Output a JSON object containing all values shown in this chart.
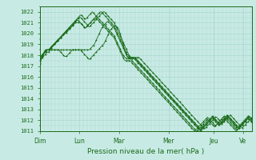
{
  "bg_color": "#c8eae4",
  "grid_color": "#a8d8d0",
  "line_color": "#1a6b1a",
  "text_color": "#1a6b1a",
  "ylim": [
    1011,
    1022.5
  ],
  "yticks": [
    1011,
    1012,
    1013,
    1014,
    1015,
    1016,
    1017,
    1018,
    1019,
    1020,
    1021,
    1022
  ],
  "xlabel": "Pression niveau de la mer( hPa )",
  "day_labels": [
    "Dim",
    "Lun",
    "Mar",
    "Mer",
    "Jeu",
    "Ve"
  ],
  "day_positions": [
    0,
    40,
    80,
    130,
    175,
    205
  ],
  "total_points": 215,
  "series": [
    [
      1017.5,
      1017.6,
      1017.7,
      1017.8,
      1017.9,
      1018.0,
      1018.1,
      1018.2,
      1018.3,
      1018.3,
      1018.4,
      1018.5,
      1018.5,
      1018.5,
      1018.5,
      1018.5,
      1018.5,
      1018.5,
      1018.5,
      1018.5,
      1018.5,
      1018.5,
      1018.5,
      1018.5,
      1018.5,
      1018.5,
      1018.5,
      1018.5,
      1018.5,
      1018.5,
      1018.5,
      1018.5,
      1018.5,
      1018.5,
      1018.5,
      1018.5,
      1018.5,
      1018.5,
      1018.5,
      1018.5,
      1018.5,
      1018.5,
      1018.4,
      1018.3,
      1018.2,
      1018.1,
      1018.0,
      1017.9,
      1017.8,
      1017.7,
      1017.6,
      1017.7,
      1017.8,
      1017.9,
      1018.0,
      1018.1,
      1018.2,
      1018.3,
      1018.4,
      1018.5,
      1018.6,
      1018.7,
      1018.8,
      1018.9,
      1019.0,
      1019.1,
      1019.3,
      1019.5,
      1019.7,
      1019.9,
      1020.1,
      1020.3,
      1020.4,
      1020.5,
      1020.6,
      1020.7,
      1020.7,
      1020.7,
      1020.6,
      1020.5,
      1020.3,
      1020.0,
      1019.7,
      1019.4,
      1019.0,
      1018.6,
      1018.3,
      1018.1,
      1017.9,
      1017.8,
      1017.8,
      1017.8,
      1017.8,
      1017.8,
      1017.8,
      1017.8,
      1017.8,
      1017.8,
      1017.8,
      1017.8,
      1017.8,
      1017.7,
      1017.6,
      1017.5,
      1017.4,
      1017.3,
      1017.2,
      1017.1,
      1017.0,
      1016.9,
      1016.8,
      1016.7,
      1016.6,
      1016.5,
      1016.4,
      1016.3,
      1016.2,
      1016.1,
      1016.0,
      1015.9,
      1015.8,
      1015.7,
      1015.6,
      1015.5,
      1015.4,
      1015.3,
      1015.2,
      1015.1,
      1015.0,
      1014.9,
      1014.8,
      1014.7,
      1014.6,
      1014.5,
      1014.4,
      1014.3,
      1014.2,
      1014.1,
      1014.0,
      1013.9,
      1013.8,
      1013.7,
      1013.6,
      1013.5,
      1013.4,
      1013.3,
      1013.2,
      1013.1,
      1013.0,
      1012.9,
      1012.8,
      1012.7,
      1012.6,
      1012.5,
      1012.4,
      1012.3,
      1012.2,
      1012.1,
      1012.0,
      1011.9,
      1011.8,
      1011.7,
      1011.6,
      1011.5,
      1011.4,
      1011.3,
      1011.2,
      1011.3,
      1011.4,
      1011.5,
      1011.6,
      1011.7,
      1011.8,
      1011.9,
      1012.0,
      1012.1,
      1012.2,
      1012.3,
      1012.3,
      1012.2,
      1012.1,
      1012.0,
      1011.9,
      1011.8,
      1011.7,
      1011.8,
      1011.9,
      1012.0,
      1012.1,
      1012.2,
      1012.3,
      1012.4,
      1012.5,
      1012.4,
      1012.3,
      1012.2,
      1012.1,
      1012.0,
      1011.9,
      1011.8,
      1011.7,
      1011.6,
      1011.5,
      1011.4,
      1011.3,
      1011.4,
      1011.5,
      1011.6,
      1011.7,
      1011.8,
      1011.9,
      1012.0,
      1012.1,
      1012.2,
      1012.3
    ],
    [
      1017.3,
      1017.5,
      1017.7,
      1017.9,
      1018.1,
      1018.3,
      1018.4,
      1018.5,
      1018.5,
      1018.5,
      1018.5,
      1018.5,
      1018.5,
      1018.5,
      1018.5,
      1018.5,
      1018.5,
      1018.5,
      1018.5,
      1018.5,
      1018.4,
      1018.3,
      1018.2,
      1018.1,
      1018.0,
      1017.9,
      1017.9,
      1017.9,
      1018.0,
      1018.1,
      1018.2,
      1018.3,
      1018.4,
      1018.5,
      1018.5,
      1018.5,
      1018.5,
      1018.5,
      1018.5,
      1018.5,
      1018.5,
      1018.5,
      1018.5,
      1018.5,
      1018.5,
      1018.5,
      1018.5,
      1018.5,
      1018.5,
      1018.5,
      1018.5,
      1018.6,
      1018.7,
      1018.8,
      1018.9,
      1019.0,
      1019.2,
      1019.4,
      1019.6,
      1019.8,
      1020.0,
      1020.2,
      1020.4,
      1020.6,
      1020.7,
      1020.8,
      1020.9,
      1021.0,
      1021.1,
      1021.1,
      1021.0,
      1020.9,
      1020.8,
      1020.7,
      1020.6,
      1020.5,
      1020.3,
      1020.1,
      1019.9,
      1019.7,
      1019.5,
      1019.3,
      1019.1,
      1018.9,
      1018.7,
      1018.5,
      1018.3,
      1018.1,
      1017.9,
      1017.8,
      1017.7,
      1017.7,
      1017.7,
      1017.7,
      1017.7,
      1017.7,
      1017.7,
      1017.7,
      1017.6,
      1017.5,
      1017.4,
      1017.3,
      1017.2,
      1017.1,
      1017.0,
      1016.9,
      1016.8,
      1016.7,
      1016.6,
      1016.5,
      1016.4,
      1016.3,
      1016.2,
      1016.1,
      1016.0,
      1015.9,
      1015.8,
      1015.7,
      1015.6,
      1015.5,
      1015.4,
      1015.3,
      1015.2,
      1015.1,
      1015.0,
      1014.9,
      1014.8,
      1014.7,
      1014.6,
      1014.5,
      1014.4,
      1014.3,
      1014.2,
      1014.1,
      1014.0,
      1013.9,
      1013.8,
      1013.7,
      1013.6,
      1013.5,
      1013.4,
      1013.3,
      1013.2,
      1013.1,
      1013.0,
      1012.9,
      1012.8,
      1012.7,
      1012.6,
      1012.5,
      1012.4,
      1012.3,
      1012.2,
      1012.1,
      1012.0,
      1011.9,
      1011.8,
      1011.7,
      1011.6,
      1011.5,
      1011.4,
      1011.3,
      1011.2,
      1011.3,
      1011.4,
      1011.5,
      1011.6,
      1011.7,
      1011.8,
      1011.9,
      1012.0,
      1012.1,
      1012.2,
      1012.3,
      1012.4,
      1012.3,
      1012.2,
      1012.1,
      1012.0,
      1011.9,
      1011.8,
      1011.7,
      1011.8,
      1011.9,
      1012.0,
      1012.1,
      1012.2,
      1012.3,
      1012.4,
      1012.5,
      1012.4,
      1012.3,
      1012.2,
      1012.1,
      1012.0,
      1011.9,
      1011.8,
      1011.7,
      1011.6,
      1011.5,
      1011.4,
      1011.5,
      1011.6,
      1011.7,
      1011.8,
      1011.9,
      1012.0,
      1012.1,
      1012.2,
      1012.3,
      1012.4,
      1012.3,
      1012.2,
      1012.1,
      1012.0
    ],
    [
      1017.8,
      1017.9,
      1018.0,
      1018.1,
      1018.2,
      1018.3,
      1018.4,
      1018.5,
      1018.5,
      1018.5,
      1018.5,
      1018.6,
      1018.7,
      1018.8,
      1018.9,
      1019.0,
      1019.1,
      1019.2,
      1019.3,
      1019.4,
      1019.5,
      1019.6,
      1019.7,
      1019.8,
      1019.9,
      1020.0,
      1020.1,
      1020.2,
      1020.3,
      1020.4,
      1020.5,
      1020.6,
      1020.7,
      1020.8,
      1020.9,
      1021.0,
      1021.1,
      1021.2,
      1021.3,
      1021.4,
      1021.5,
      1021.5,
      1021.4,
      1021.3,
      1021.2,
      1021.1,
      1021.0,
      1020.9,
      1020.8,
      1020.7,
      1020.6,
      1020.7,
      1020.8,
      1020.9,
      1021.0,
      1021.1,
      1021.2,
      1021.3,
      1021.4,
      1021.5,
      1021.6,
      1021.7,
      1021.8,
      1021.9,
      1022.0,
      1022.0,
      1021.9,
      1021.8,
      1021.7,
      1021.6,
      1021.5,
      1021.4,
      1021.3,
      1021.2,
      1021.1,
      1021.0,
      1020.8,
      1020.6,
      1020.4,
      1020.2,
      1020.0,
      1019.8,
      1019.6,
      1019.4,
      1019.2,
      1019.0,
      1018.8,
      1018.6,
      1018.4,
      1018.2,
      1018.0,
      1017.9,
      1017.8,
      1017.8,
      1017.8,
      1017.8,
      1017.7,
      1017.6,
      1017.5,
      1017.4,
      1017.3,
      1017.2,
      1017.1,
      1017.0,
      1016.9,
      1016.8,
      1016.7,
      1016.6,
      1016.5,
      1016.4,
      1016.3,
      1016.2,
      1016.1,
      1016.0,
      1015.9,
      1015.8,
      1015.7,
      1015.6,
      1015.5,
      1015.4,
      1015.3,
      1015.2,
      1015.1,
      1015.0,
      1014.9,
      1014.8,
      1014.7,
      1014.6,
      1014.5,
      1014.4,
      1014.3,
      1014.2,
      1014.1,
      1014.0,
      1013.9,
      1013.8,
      1013.7,
      1013.6,
      1013.5,
      1013.4,
      1013.3,
      1013.2,
      1013.1,
      1013.0,
      1012.9,
      1012.8,
      1012.7,
      1012.6,
      1012.5,
      1012.4,
      1012.3,
      1012.2,
      1012.1,
      1012.0,
      1011.9,
      1011.8,
      1011.7,
      1011.6,
      1011.5,
      1011.4,
      1011.3,
      1011.2,
      1011.1,
      1011.2,
      1011.3,
      1011.4,
      1011.5,
      1011.6,
      1011.7,
      1011.8,
      1011.9,
      1012.0,
      1012.1,
      1012.2,
      1012.3,
      1012.2,
      1012.1,
      1012.0,
      1011.9,
      1011.8,
      1011.7,
      1011.6,
      1011.7,
      1011.8,
      1011.9,
      1012.0,
      1012.1,
      1012.2,
      1012.3,
      1012.4,
      1012.3,
      1012.2,
      1012.1,
      1012.0,
      1011.9,
      1011.8,
      1011.7,
      1011.6,
      1011.5,
      1011.4,
      1011.3,
      1011.4,
      1011.5,
      1011.6,
      1011.7,
      1011.8,
      1011.9,
      1012.0,
      1012.1,
      1012.2,
      1012.3,
      1012.4,
      1012.3,
      1012.2,
      1012.1
    ],
    [
      1017.6,
      1017.8,
      1018.0,
      1018.1,
      1018.2,
      1018.3,
      1018.4,
      1018.5,
      1018.5,
      1018.5,
      1018.5,
      1018.6,
      1018.7,
      1018.8,
      1018.9,
      1019.0,
      1019.1,
      1019.2,
      1019.3,
      1019.4,
      1019.5,
      1019.6,
      1019.7,
      1019.8,
      1019.9,
      1020.0,
      1020.1,
      1020.2,
      1020.3,
      1020.4,
      1020.5,
      1020.6,
      1020.7,
      1020.8,
      1020.9,
      1021.0,
      1021.1,
      1021.2,
      1021.2,
      1021.2,
      1021.1,
      1021.0,
      1020.9,
      1020.8,
      1020.7,
      1020.6,
      1020.5,
      1020.6,
      1020.7,
      1020.8,
      1020.9,
      1021.0,
      1021.1,
      1021.2,
      1021.3,
      1021.4,
      1021.4,
      1021.4,
      1021.3,
      1021.2,
      1021.1,
      1021.0,
      1020.9,
      1020.8,
      1020.7,
      1020.6,
      1020.5,
      1020.4,
      1020.3,
      1020.2,
      1020.1,
      1020.0,
      1019.9,
      1019.8,
      1019.7,
      1019.6,
      1019.4,
      1019.2,
      1019.0,
      1018.8,
      1018.6,
      1018.4,
      1018.2,
      1018.0,
      1017.8,
      1017.6,
      1017.5,
      1017.5,
      1017.5,
      1017.5,
      1017.5,
      1017.5,
      1017.4,
      1017.3,
      1017.2,
      1017.1,
      1017.0,
      1016.9,
      1016.8,
      1016.7,
      1016.6,
      1016.5,
      1016.4,
      1016.3,
      1016.2,
      1016.1,
      1016.0,
      1015.9,
      1015.8,
      1015.7,
      1015.6,
      1015.5,
      1015.4,
      1015.3,
      1015.2,
      1015.1,
      1015.0,
      1014.9,
      1014.8,
      1014.7,
      1014.6,
      1014.5,
      1014.4,
      1014.3,
      1014.2,
      1014.1,
      1014.0,
      1013.9,
      1013.8,
      1013.7,
      1013.6,
      1013.5,
      1013.4,
      1013.3,
      1013.2,
      1013.1,
      1013.0,
      1012.9,
      1012.8,
      1012.7,
      1012.6,
      1012.5,
      1012.4,
      1012.3,
      1012.2,
      1012.1,
      1012.0,
      1011.9,
      1011.8,
      1011.7,
      1011.6,
      1011.5,
      1011.4,
      1011.3,
      1011.2,
      1011.1,
      1011.0,
      1011.1,
      1011.2,
      1011.3,
      1011.4,
      1011.5,
      1011.6,
      1011.7,
      1011.8,
      1011.9,
      1012.0,
      1012.1,
      1012.2,
      1012.3,
      1012.2,
      1012.1,
      1012.0,
      1011.9,
      1011.8,
      1011.7,
      1011.6,
      1011.5,
      1011.6,
      1011.7,
      1011.8,
      1011.9,
      1012.0,
      1012.1,
      1012.2,
      1012.3,
      1012.4,
      1012.3,
      1012.2,
      1012.1,
      1012.0,
      1011.9,
      1011.8,
      1011.7,
      1011.6,
      1011.5,
      1011.4,
      1011.3,
      1011.2,
      1011.1,
      1011.2,
      1011.3,
      1011.4,
      1011.5,
      1011.6,
      1011.7,
      1011.8,
      1011.9,
      1012.0,
      1012.1,
      1012.2,
      1012.1,
      1012.0,
      1011.9,
      1011.8
    ],
    [
      1017.4,
      1017.6,
      1017.8,
      1018.0,
      1018.2,
      1018.4,
      1018.5,
      1018.5,
      1018.5,
      1018.5,
      1018.6,
      1018.7,
      1018.8,
      1018.9,
      1019.0,
      1019.1,
      1019.2,
      1019.3,
      1019.4,
      1019.5,
      1019.6,
      1019.7,
      1019.8,
      1019.9,
      1020.0,
      1020.1,
      1020.2,
      1020.3,
      1020.4,
      1020.5,
      1020.6,
      1020.7,
      1020.8,
      1020.9,
      1021.0,
      1021.1,
      1021.2,
      1021.3,
      1021.4,
      1021.5,
      1021.6,
      1021.7,
      1021.7,
      1021.6,
      1021.5,
      1021.4,
      1021.3,
      1021.4,
      1021.5,
      1021.6,
      1021.7,
      1021.8,
      1021.9,
      1022.0,
      1021.9,
      1021.8,
      1021.7,
      1021.6,
      1021.5,
      1021.4,
      1021.3,
      1021.2,
      1021.1,
      1021.0,
      1020.9,
      1020.8,
      1020.7,
      1020.6,
      1020.5,
      1020.4,
      1020.3,
      1020.2,
      1020.1,
      1020.0,
      1019.9,
      1019.8,
      1019.6,
      1019.4,
      1019.2,
      1019.0,
      1018.8,
      1018.6,
      1018.4,
      1018.2,
      1018.0,
      1017.9,
      1017.8,
      1017.7,
      1017.7,
      1017.7,
      1017.7,
      1017.7,
      1017.6,
      1017.5,
      1017.4,
      1017.3,
      1017.2,
      1017.1,
      1017.0,
      1016.9,
      1016.8,
      1016.7,
      1016.6,
      1016.5,
      1016.4,
      1016.3,
      1016.2,
      1016.1,
      1016.0,
      1015.9,
      1015.8,
      1015.7,
      1015.6,
      1015.5,
      1015.4,
      1015.3,
      1015.2,
      1015.1,
      1015.0,
      1014.9,
      1014.8,
      1014.7,
      1014.6,
      1014.5,
      1014.4,
      1014.3,
      1014.2,
      1014.1,
      1014.0,
      1013.9,
      1013.8,
      1013.7,
      1013.6,
      1013.5,
      1013.4,
      1013.3,
      1013.2,
      1013.1,
      1013.0,
      1012.9,
      1012.8,
      1012.7,
      1012.6,
      1012.5,
      1012.4,
      1012.3,
      1012.2,
      1012.1,
      1012.0,
      1011.9,
      1011.8,
      1011.7,
      1011.6,
      1011.5,
      1011.4,
      1011.3,
      1011.2,
      1011.1,
      1011.0,
      1011.1,
      1011.2,
      1011.3,
      1011.4,
      1011.5,
      1011.6,
      1011.7,
      1011.8,
      1011.9,
      1012.0,
      1012.1,
      1012.0,
      1011.9,
      1011.8,
      1011.7,
      1011.6,
      1011.5,
      1011.4,
      1011.5,
      1011.6,
      1011.7,
      1011.8,
      1011.9,
      1012.0,
      1012.1,
      1012.2,
      1012.3,
      1012.2,
      1012.1,
      1012.0,
      1011.9,
      1011.8,
      1011.7,
      1011.6,
      1011.5,
      1011.4,
      1011.3,
      1011.2,
      1011.1,
      1011.0,
      1011.1,
      1011.2,
      1011.3,
      1011.4,
      1011.5,
      1011.6,
      1011.7,
      1011.8,
      1011.9,
      1012.0,
      1012.1,
      1012.2,
      1012.1,
      1012.0,
      1011.9,
      1011.8
    ],
    [
      1017.2,
      1017.5,
      1017.8,
      1018.0,
      1018.1,
      1018.2,
      1018.3,
      1018.4,
      1018.5,
      1018.5,
      1018.6,
      1018.7,
      1018.8,
      1018.9,
      1019.0,
      1019.1,
      1019.2,
      1019.3,
      1019.4,
      1019.5,
      1019.5,
      1019.6,
      1019.7,
      1019.8,
      1019.9,
      1020.0,
      1020.0,
      1020.1,
      1020.2,
      1020.3,
      1020.4,
      1020.5,
      1020.6,
      1020.7,
      1020.8,
      1020.9,
      1021.0,
      1021.0,
      1021.0,
      1021.0,
      1021.0,
      1021.0,
      1020.9,
      1020.8,
      1020.7,
      1020.6,
      1020.5,
      1020.6,
      1020.7,
      1020.8,
      1020.9,
      1021.0,
      1021.1,
      1021.2,
      1021.3,
      1021.4,
      1021.5,
      1021.6,
      1021.7,
      1021.8,
      1021.9,
      1022.0,
      1022.0,
      1021.9,
      1021.8,
      1021.7,
      1021.6,
      1021.5,
      1021.4,
      1021.3,
      1021.2,
      1021.1,
      1021.0,
      1020.9,
      1020.8,
      1020.7,
      1020.5,
      1020.3,
      1020.1,
      1019.9,
      1019.7,
      1019.5,
      1019.3,
      1019.1,
      1018.9,
      1018.7,
      1018.5,
      1018.3,
      1018.1,
      1018.0,
      1017.9,
      1017.8,
      1017.7,
      1017.7,
      1017.7,
      1017.7,
      1017.6,
      1017.5,
      1017.4,
      1017.3,
      1017.2,
      1017.1,
      1017.0,
      1016.9,
      1016.8,
      1016.7,
      1016.6,
      1016.5,
      1016.4,
      1016.3,
      1016.2,
      1016.1,
      1016.0,
      1015.9,
      1015.8,
      1015.7,
      1015.6,
      1015.5,
      1015.4,
      1015.3,
      1015.2,
      1015.1,
      1015.0,
      1014.9,
      1014.8,
      1014.7,
      1014.6,
      1014.5,
      1014.4,
      1014.3,
      1014.2,
      1014.1,
      1014.0,
      1013.9,
      1013.8,
      1013.7,
      1013.6,
      1013.5,
      1013.4,
      1013.3,
      1013.2,
      1013.1,
      1013.0,
      1012.9,
      1012.8,
      1012.7,
      1012.6,
      1012.5,
      1012.4,
      1012.3,
      1012.2,
      1012.1,
      1012.0,
      1011.9,
      1011.8,
      1011.7,
      1011.6,
      1011.5,
      1011.4,
      1011.3,
      1011.2,
      1011.1,
      1011.0,
      1011.1,
      1011.2,
      1011.3,
      1011.4,
      1011.5,
      1011.6,
      1011.7,
      1011.8,
      1011.9,
      1012.0,
      1012.1,
      1012.2,
      1012.1,
      1012.0,
      1011.9,
      1011.8,
      1011.7,
      1011.6,
      1011.5,
      1011.6,
      1011.7,
      1011.8,
      1011.9,
      1012.0,
      1012.1,
      1012.2,
      1012.3,
      1012.2,
      1012.1,
      1012.0,
      1011.9,
      1011.8,
      1011.7,
      1011.6,
      1011.5,
      1011.4,
      1011.3,
      1011.2,
      1011.3,
      1011.4,
      1011.5,
      1011.6,
      1011.7,
      1011.8,
      1011.9,
      1012.0,
      1012.1,
      1012.2,
      1012.3,
      1012.2,
      1012.1,
      1012.0
    ]
  ]
}
